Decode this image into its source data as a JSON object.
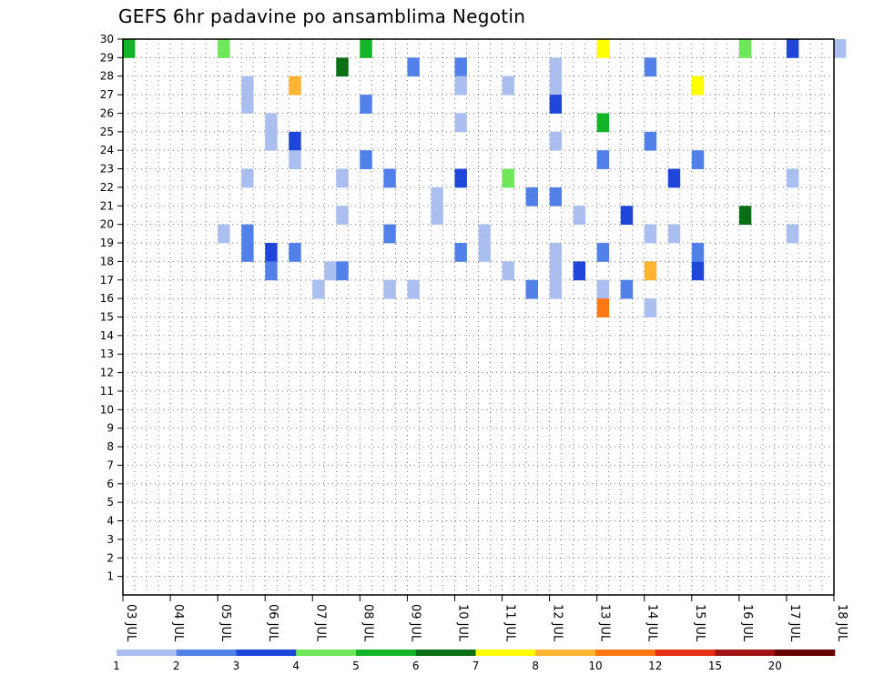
{
  "chart_data": {
    "type": "heatmap",
    "title": "GEFS 6hr padavine po ansamblima Negotin",
    "x_ticks": [
      "03 JUL",
      "04 JUL",
      "05 JUL",
      "06 JUL",
      "07 JUL",
      "08 JUL",
      "09 JUL",
      "10 JUL",
      "11 JUL",
      "12 JUL",
      "13 JUL",
      "14 JUL",
      "15 JUL",
      "16 JUL",
      "17 JUL",
      "18 JUL"
    ],
    "y_ticks": [
      "1",
      "2",
      "3",
      "4",
      "5",
      "6",
      "7",
      "8",
      "9",
      "10",
      "11",
      "12",
      "13",
      "14",
      "15",
      "16",
      "17",
      "18",
      "19",
      "20",
      "21",
      "22",
      "23",
      "24",
      "25",
      "26",
      "27",
      "28",
      "29",
      "30"
    ],
    "ylim": [
      0,
      30
    ],
    "x_step_hours": 6,
    "grid": true,
    "legend": {
      "placement": "bottom",
      "labels": [
        "1",
        "2",
        "3",
        "4",
        "5",
        "6",
        "7",
        "8",
        "10",
        "12",
        "15",
        "20"
      ],
      "colors": [
        "#aabff0",
        "#5080e8",
        "#1e46d8",
        "#6ee85a",
        "#14b428",
        "#0a6e14",
        "#ffff00",
        "#ffb432",
        "#ff7814",
        "#e63214",
        "#a01414",
        "#640000"
      ]
    },
    "cells": [
      {
        "t": 0,
        "m": 30,
        "c": 5
      },
      {
        "t": 8,
        "m": 30,
        "c": 4
      },
      {
        "t": 20,
        "m": 30,
        "c": 5
      },
      {
        "t": 40,
        "m": 30,
        "c": 7
      },
      {
        "t": 52,
        "m": 30,
        "c": 4
      },
      {
        "t": 56,
        "m": 30,
        "c": 3
      },
      {
        "t": 60,
        "m": 30,
        "c": 1
      },
      {
        "t": 28,
        "m": 29,
        "c": 2
      },
      {
        "t": 36,
        "m": 29,
        "c": 1
      },
      {
        "t": 44,
        "m": 29,
        "c": 2
      },
      {
        "t": 36,
        "m": 28,
        "c": 1
      },
      {
        "t": 48,
        "m": 28,
        "c": 7
      },
      {
        "t": 18,
        "m": 29,
        "c": 6
      },
      {
        "t": 24,
        "m": 29,
        "c": 2
      },
      {
        "t": 28,
        "m": 28,
        "c": 1
      },
      {
        "t": 32,
        "m": 28,
        "c": 1
      },
      {
        "t": 36,
        "m": 27,
        "c": 3
      },
      {
        "t": 40,
        "m": 26,
        "c": 5
      },
      {
        "t": 44,
        "m": 25,
        "c": 2
      },
      {
        "t": 48,
        "m": 24,
        "c": 2
      },
      {
        "t": 56,
        "m": 23,
        "c": 1
      },
      {
        "t": 10,
        "m": 28,
        "c": 1
      },
      {
        "t": 14,
        "m": 28,
        "c": 8
      },
      {
        "t": 20,
        "m": 27,
        "c": 2
      },
      {
        "t": 28,
        "m": 26,
        "c": 1
      },
      {
        "t": 36,
        "m": 25,
        "c": 1
      },
      {
        "t": 40,
        "m": 24,
        "c": 2
      },
      {
        "t": 46,
        "m": 23,
        "c": 3
      },
      {
        "t": 10,
        "m": 27,
        "c": 1
      },
      {
        "t": 12,
        "m": 26,
        "c": 1
      },
      {
        "t": 14,
        "m": 25,
        "c": 3
      },
      {
        "t": 20,
        "m": 24,
        "c": 2
      },
      {
        "t": 28,
        "m": 23,
        "c": 3
      },
      {
        "t": 12,
        "m": 25,
        "c": 1
      },
      {
        "t": 14,
        "m": 24,
        "c": 1
      },
      {
        "t": 18,
        "m": 23,
        "c": 1
      },
      {
        "t": 26,
        "m": 22,
        "c": 1
      },
      {
        "t": 22,
        "m": 23,
        "c": 2
      },
      {
        "t": 26,
        "m": 21,
        "c": 1
      },
      {
        "t": 30,
        "m": 20,
        "c": 1
      },
      {
        "t": 36,
        "m": 19,
        "c": 1
      },
      {
        "t": 48,
        "m": 18,
        "c": 3
      },
      {
        "t": 10,
        "m": 23,
        "c": 1
      },
      {
        "t": 18,
        "m": 21,
        "c": 1
      },
      {
        "t": 22,
        "m": 20,
        "c": 2
      },
      {
        "t": 28,
        "m": 19,
        "c": 2
      },
      {
        "t": 36,
        "m": 18,
        "c": 1
      },
      {
        "t": 40,
        "m": 17,
        "c": 1
      },
      {
        "t": 44,
        "m": 16,
        "c": 1
      },
      {
        "t": 34,
        "m": 22,
        "c": 2
      },
      {
        "t": 38,
        "m": 21,
        "c": 1
      },
      {
        "t": 44,
        "m": 20,
        "c": 1
      },
      {
        "t": 48,
        "m": 19,
        "c": 2
      },
      {
        "t": 32,
        "m": 23,
        "c": 4
      },
      {
        "t": 36,
        "m": 22,
        "c": 2
      },
      {
        "t": 42,
        "m": 21,
        "c": 3
      },
      {
        "t": 46,
        "m": 20,
        "c": 1
      },
      {
        "t": 52,
        "m": 21,
        "c": 6
      },
      {
        "t": 56,
        "m": 20,
        "c": 1
      },
      {
        "t": 8,
        "m": 20,
        "c": 1
      },
      {
        "t": 10,
        "m": 20,
        "c": 2
      },
      {
        "t": 12,
        "m": 19,
        "c": 3
      },
      {
        "t": 14,
        "m": 19,
        "c": 2
      },
      {
        "t": 17,
        "m": 18,
        "c": 1
      },
      {
        "t": 24,
        "m": 17,
        "c": 1
      },
      {
        "t": 10,
        "m": 19,
        "c": 2
      },
      {
        "t": 12,
        "m": 18,
        "c": 2
      },
      {
        "t": 16,
        "m": 17,
        "c": 1
      },
      {
        "t": 18,
        "m": 18,
        "c": 2
      },
      {
        "t": 22,
        "m": 17,
        "c": 1
      },
      {
        "t": 30,
        "m": 19,
        "c": 1
      },
      {
        "t": 32,
        "m": 18,
        "c": 1
      },
      {
        "t": 34,
        "m": 17,
        "c": 2
      },
      {
        "t": 40,
        "m": 19,
        "c": 2
      },
      {
        "t": 44,
        "m": 18,
        "c": 8
      },
      {
        "t": 38,
        "m": 18,
        "c": 3
      },
      {
        "t": 42,
        "m": 17,
        "c": 2
      },
      {
        "t": 36,
        "m": 17,
        "c": 1
      },
      {
        "t": 40,
        "m": 16,
        "c": 9
      }
    ]
  }
}
